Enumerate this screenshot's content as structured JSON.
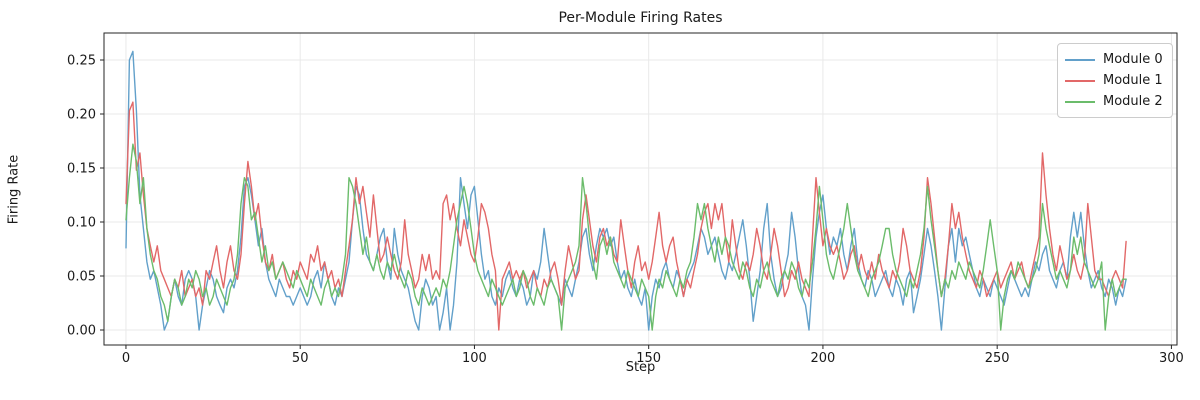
{
  "chart_data": {
    "type": "line",
    "title": "Per-Module Firing Rates",
    "xlabel": "Step",
    "ylabel": "Firing Rate",
    "grid": true,
    "legend_position": "upper right",
    "x_start": 0,
    "x_step": 1,
    "n_points": 288,
    "xlim": [
      -6.3,
      301.6
    ],
    "ylim": [
      -0.0139,
      0.275
    ],
    "x_ticks": [
      0,
      50,
      100,
      150,
      200,
      250,
      300
    ],
    "x_tick_labels": [
      "0",
      "50",
      "100",
      "150",
      "200",
      "250",
      "300"
    ],
    "y_ticks": [
      0.0,
      0.05,
      0.1,
      0.15,
      0.2,
      0.25
    ],
    "y_tick_labels": [
      "0.00",
      "0.05",
      "0.10",
      "0.15",
      "0.20",
      "0.25"
    ],
    "series": [
      {
        "name": "Module 0",
        "color": "#62a0ca",
        "values": [
          0.076,
          0.25,
          0.258,
          0.203,
          0.125,
          0.094,
          0.063,
          0.047,
          0.055,
          0.039,
          0.023,
          0.0,
          0.008,
          0.031,
          0.047,
          0.031,
          0.023,
          0.047,
          0.055,
          0.047,
          0.031,
          0.0,
          0.023,
          0.039,
          0.055,
          0.047,
          0.031,
          0.023,
          0.016,
          0.039,
          0.047,
          0.039,
          0.055,
          0.086,
          0.133,
          0.141,
          0.125,
          0.102,
          0.078,
          0.094,
          0.063,
          0.047,
          0.039,
          0.031,
          0.047,
          0.039,
          0.031,
          0.031,
          0.023,
          0.031,
          0.039,
          0.031,
          0.023,
          0.031,
          0.047,
          0.055,
          0.039,
          0.063,
          0.047,
          0.031,
          0.023,
          0.039,
          0.031,
          0.047,
          0.063,
          0.102,
          0.133,
          0.125,
          0.094,
          0.07,
          0.063,
          0.055,
          0.07,
          0.086,
          0.094,
          0.063,
          0.047,
          0.094,
          0.07,
          0.055,
          0.047,
          0.039,
          0.023,
          0.008,
          0.0,
          0.031,
          0.047,
          0.039,
          0.023,
          0.031,
          0.0,
          0.016,
          0.039,
          0.0,
          0.023,
          0.063,
          0.141,
          0.117,
          0.094,
          0.125,
          0.133,
          0.102,
          0.07,
          0.047,
          0.055,
          0.031,
          0.023,
          0.039,
          0.031,
          0.047,
          0.055,
          0.039,
          0.031,
          0.047,
          0.039,
          0.023,
          0.031,
          0.055,
          0.047,
          0.063,
          0.094,
          0.07,
          0.047,
          0.039,
          0.031,
          0.023,
          0.047,
          0.039,
          0.031,
          0.047,
          0.063,
          0.086,
          0.094,
          0.07,
          0.055,
          0.078,
          0.094,
          0.086,
          0.094,
          0.078,
          0.086,
          0.063,
          0.047,
          0.055,
          0.039,
          0.031,
          0.047,
          0.031,
          0.023,
          0.039,
          0.0,
          0.031,
          0.047,
          0.039,
          0.055,
          0.063,
          0.047,
          0.039,
          0.055,
          0.047,
          0.031,
          0.047,
          0.055,
          0.063,
          0.078,
          0.094,
          0.086,
          0.07,
          0.078,
          0.086,
          0.07,
          0.055,
          0.047,
          0.063,
          0.055,
          0.07,
          0.086,
          0.102,
          0.078,
          0.047,
          0.008,
          0.031,
          0.055,
          0.094,
          0.117,
          0.07,
          0.047,
          0.031,
          0.039,
          0.055,
          0.07,
          0.109,
          0.086,
          0.055,
          0.031,
          0.023,
          0.0,
          0.047,
          0.086,
          0.109,
          0.125,
          0.094,
          0.07,
          0.086,
          0.078,
          0.094,
          0.07,
          0.055,
          0.078,
          0.094,
          0.063,
          0.047,
          0.039,
          0.055,
          0.047,
          0.031,
          0.039,
          0.047,
          0.055,
          0.039,
          0.031,
          0.047,
          0.039,
          0.023,
          0.047,
          0.055,
          0.016,
          0.031,
          0.047,
          0.07,
          0.094,
          0.078,
          0.055,
          0.031,
          0.0,
          0.039,
          0.078,
          0.094,
          0.063,
          0.094,
          0.078,
          0.086,
          0.07,
          0.055,
          0.039,
          0.031,
          0.047,
          0.039,
          0.031,
          0.047,
          0.039,
          0.031,
          0.023,
          0.039,
          0.055,
          0.047,
          0.039,
          0.031,
          0.039,
          0.031,
          0.047,
          0.063,
          0.055,
          0.07,
          0.078,
          0.055,
          0.047,
          0.039,
          0.055,
          0.063,
          0.047,
          0.086,
          0.109,
          0.086,
          0.109,
          0.078,
          0.055,
          0.039,
          0.047,
          0.055,
          0.039,
          0.031,
          0.047,
          0.039,
          0.023,
          0.039,
          0.031,
          0.047
        ]
      },
      {
        "name": "Module 1",
        "color": "#e26868",
        "values": [
          0.117,
          0.203,
          0.211,
          0.148,
          0.164,
          0.125,
          0.094,
          0.078,
          0.063,
          0.078,
          0.055,
          0.047,
          0.039,
          0.031,
          0.047,
          0.039,
          0.055,
          0.031,
          0.039,
          0.047,
          0.031,
          0.039,
          0.023,
          0.055,
          0.047,
          0.063,
          0.078,
          0.055,
          0.039,
          0.063,
          0.078,
          0.055,
          0.047,
          0.07,
          0.117,
          0.156,
          0.133,
          0.102,
          0.117,
          0.086,
          0.063,
          0.055,
          0.07,
          0.047,
          0.055,
          0.063,
          0.047,
          0.039,
          0.055,
          0.047,
          0.063,
          0.055,
          0.047,
          0.07,
          0.063,
          0.078,
          0.055,
          0.063,
          0.047,
          0.055,
          0.039,
          0.047,
          0.031,
          0.055,
          0.078,
          0.102,
          0.141,
          0.117,
          0.133,
          0.109,
          0.086,
          0.125,
          0.094,
          0.063,
          0.07,
          0.086,
          0.07,
          0.055,
          0.047,
          0.063,
          0.102,
          0.07,
          0.055,
          0.039,
          0.047,
          0.07,
          0.055,
          0.07,
          0.047,
          0.055,
          0.047,
          0.117,
          0.125,
          0.102,
          0.117,
          0.094,
          0.078,
          0.102,
          0.086,
          0.07,
          0.063,
          0.086,
          0.117,
          0.109,
          0.094,
          0.07,
          0.055,
          0.0,
          0.047,
          0.055,
          0.063,
          0.047,
          0.055,
          0.047,
          0.055,
          0.039,
          0.047,
          0.055,
          0.039,
          0.031,
          0.047,
          0.039,
          0.055,
          0.063,
          0.047,
          0.023,
          0.055,
          0.078,
          0.063,
          0.047,
          0.055,
          0.102,
          0.125,
          0.102,
          0.078,
          0.063,
          0.086,
          0.094,
          0.078,
          0.086,
          0.07,
          0.063,
          0.102,
          0.078,
          0.055,
          0.039,
          0.063,
          0.078,
          0.055,
          0.063,
          0.047,
          0.063,
          0.086,
          0.109,
          0.078,
          0.063,
          0.078,
          0.086,
          0.063,
          0.047,
          0.031,
          0.047,
          0.039,
          0.055,
          0.07,
          0.094,
          0.109,
          0.117,
          0.094,
          0.117,
          0.102,
          0.117,
          0.086,
          0.063,
          0.102,
          0.078,
          0.055,
          0.047,
          0.063,
          0.055,
          0.07,
          0.094,
          0.078,
          0.055,
          0.047,
          0.07,
          0.094,
          0.078,
          0.055,
          0.031,
          0.039,
          0.055,
          0.047,
          0.063,
          0.047,
          0.039,
          0.031,
          0.086,
          0.141,
          0.109,
          0.078,
          0.094,
          0.078,
          0.07,
          0.078,
          0.063,
          0.047,
          0.055,
          0.07,
          0.078,
          0.055,
          0.07,
          0.055,
          0.047,
          0.063,
          0.047,
          0.07,
          0.055,
          0.047,
          0.039,
          0.055,
          0.047,
          0.063,
          0.094,
          0.078,
          0.055,
          0.047,
          0.039,
          0.055,
          0.086,
          0.141,
          0.117,
          0.086,
          0.055,
          0.031,
          0.047,
          0.078,
          0.117,
          0.094,
          0.109,
          0.086,
          0.07,
          0.055,
          0.047,
          0.039,
          0.055,
          0.047,
          0.031,
          0.039,
          0.047,
          0.055,
          0.039,
          0.047,
          0.055,
          0.063,
          0.047,
          0.055,
          0.063,
          0.047,
          0.039,
          0.055,
          0.07,
          0.086,
          0.164,
          0.125,
          0.094,
          0.07,
          0.055,
          0.078,
          0.063,
          0.047,
          0.055,
          0.07,
          0.055,
          0.047,
          0.063,
          0.117,
          0.086,
          0.055,
          0.047,
          0.047,
          0.039,
          0.031,
          0.047,
          0.055,
          0.047,
          0.039,
          0.082
        ]
      },
      {
        "name": "Module 2",
        "color": "#6bbc6b",
        "values": [
          0.102,
          0.141,
          0.172,
          0.156,
          0.117,
          0.141,
          0.094,
          0.07,
          0.055,
          0.047,
          0.031,
          0.023,
          0.008,
          0.031,
          0.047,
          0.039,
          0.023,
          0.031,
          0.047,
          0.039,
          0.055,
          0.047,
          0.031,
          0.039,
          0.023,
          0.031,
          0.047,
          0.039,
          0.031,
          0.023,
          0.039,
          0.047,
          0.07,
          0.117,
          0.141,
          0.133,
          0.102,
          0.109,
          0.086,
          0.063,
          0.078,
          0.055,
          0.063,
          0.047,
          0.055,
          0.063,
          0.055,
          0.047,
          0.039,
          0.055,
          0.047,
          0.039,
          0.031,
          0.047,
          0.039,
          0.031,
          0.023,
          0.039,
          0.047,
          0.031,
          0.039,
          0.031,
          0.047,
          0.07,
          0.141,
          0.133,
          0.117,
          0.094,
          0.07,
          0.086,
          0.063,
          0.055,
          0.07,
          0.055,
          0.047,
          0.063,
          0.055,
          0.07,
          0.055,
          0.047,
          0.039,
          0.055,
          0.047,
          0.031,
          0.023,
          0.039,
          0.031,
          0.023,
          0.031,
          0.039,
          0.031,
          0.047,
          0.039,
          0.055,
          0.078,
          0.102,
          0.117,
          0.133,
          0.117,
          0.094,
          0.07,
          0.055,
          0.047,
          0.039,
          0.031,
          0.047,
          0.039,
          0.031,
          0.023,
          0.031,
          0.039,
          0.047,
          0.031,
          0.039,
          0.055,
          0.047,
          0.031,
          0.023,
          0.039,
          0.031,
          0.023,
          0.039,
          0.047,
          0.039,
          0.031,
          0.0,
          0.039,
          0.047,
          0.055,
          0.063,
          0.078,
          0.141,
          0.117,
          0.086,
          0.063,
          0.047,
          0.078,
          0.086,
          0.07,
          0.086,
          0.063,
          0.055,
          0.047,
          0.039,
          0.055,
          0.047,
          0.039,
          0.031,
          0.047,
          0.039,
          0.031,
          0.0,
          0.031,
          0.047,
          0.039,
          0.055,
          0.047,
          0.039,
          0.031,
          0.047,
          0.039,
          0.055,
          0.063,
          0.086,
          0.117,
          0.102,
          0.117,
          0.094,
          0.078,
          0.063,
          0.086,
          0.07,
          0.086,
          0.078,
          0.063,
          0.055,
          0.047,
          0.063,
          0.055,
          0.039,
          0.031,
          0.047,
          0.039,
          0.055,
          0.063,
          0.047,
          0.039,
          0.031,
          0.047,
          0.055,
          0.047,
          0.063,
          0.055,
          0.039,
          0.031,
          0.047,
          0.039,
          0.063,
          0.094,
          0.133,
          0.102,
          0.07,
          0.055,
          0.047,
          0.063,
          0.078,
          0.094,
          0.117,
          0.094,
          0.07,
          0.055,
          0.047,
          0.039,
          0.031,
          0.047,
          0.055,
          0.063,
          0.078,
          0.094,
          0.094,
          0.07,
          0.055,
          0.047,
          0.039,
          0.031,
          0.047,
          0.039,
          0.055,
          0.07,
          0.094,
          0.133,
          0.102,
          0.078,
          0.055,
          0.031,
          0.047,
          0.039,
          0.055,
          0.047,
          0.063,
          0.055,
          0.047,
          0.063,
          0.055,
          0.047,
          0.039,
          0.055,
          0.078,
          0.102,
          0.078,
          0.055,
          0.0,
          0.031,
          0.047,
          0.055,
          0.047,
          0.063,
          0.055,
          0.047,
          0.039,
          0.047,
          0.055,
          0.07,
          0.117,
          0.094,
          0.078,
          0.063,
          0.047,
          0.055,
          0.047,
          0.039,
          0.055,
          0.086,
          0.07,
          0.086,
          0.063,
          0.055,
          0.047,
          0.039,
          0.047,
          0.063,
          0.0,
          0.031,
          0.047,
          0.031,
          0.039,
          0.047,
          0.047
        ]
      }
    ]
  }
}
